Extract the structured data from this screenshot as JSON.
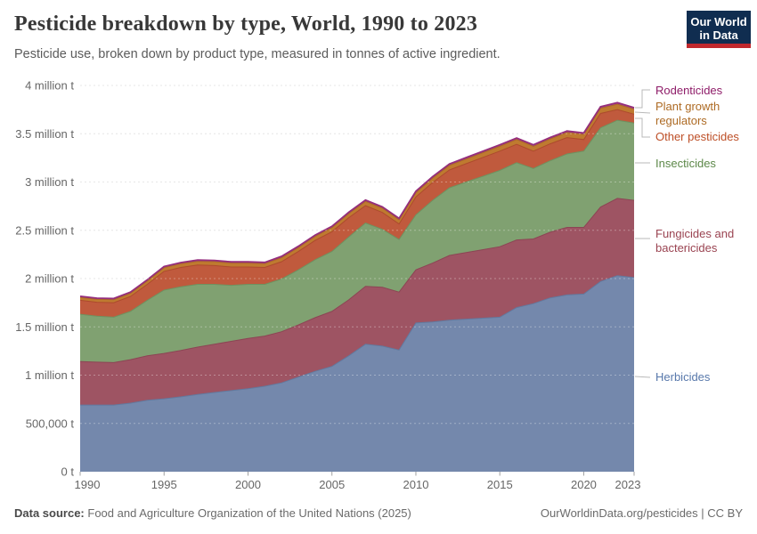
{
  "header": {
    "title": "Pesticide breakdown by type, World, 1990 to 2023",
    "subtitle": "Pesticide use, broken down by product type, measured in tonnes of active ingredient.",
    "logo": {
      "line1": "Our World",
      "line2": "in Data"
    }
  },
  "chart_data": {
    "type": "area",
    "stacked": true,
    "title": "Pesticide breakdown by type, World, 1990 to 2023",
    "unit": "tonnes of active ingredient",
    "grid": "dashed horizontal gridlines",
    "legend_position": "right",
    "x": [
      1990,
      1991,
      1992,
      1993,
      1994,
      1995,
      1996,
      1997,
      1998,
      1999,
      2000,
      2001,
      2002,
      2003,
      2004,
      2005,
      2006,
      2007,
      2008,
      2009,
      2010,
      2011,
      2012,
      2013,
      2014,
      2015,
      2016,
      2017,
      2018,
      2019,
      2020,
      2021,
      2022,
      2023
    ],
    "xlim": [
      1990,
      2023
    ],
    "ylim": [
      0,
      4000000
    ],
    "ytick_values": [
      0,
      500000,
      1000000,
      1500000,
      2000000,
      2500000,
      3000000,
      3500000,
      4000000
    ],
    "ytick_labels": [
      "0 t",
      "500,000 t",
      "1 million t",
      "1.5 million t",
      "2 million t",
      "2.5 million t",
      "3 million t",
      "3.5 million t",
      "4 million t"
    ],
    "xtick_labels": [
      1990,
      1995,
      2000,
      2005,
      2010,
      2015,
      2020,
      2023
    ],
    "series": [
      {
        "name": "Herbicides",
        "color": "#7488ac",
        "edge": "#62799e",
        "label_color": "#5878ab",
        "values": [
          690000,
          690000,
          690000,
          710000,
          740000,
          755000,
          775000,
          800000,
          820000,
          840000,
          860000,
          885000,
          920000,
          980000,
          1040000,
          1090000,
          1200000,
          1320000,
          1300000,
          1260000,
          1540000,
          1550000,
          1570000,
          1580000,
          1590000,
          1600000,
          1700000,
          1740000,
          1800000,
          1830000,
          1840000,
          1970000,
          2030000,
          2010000
        ]
      },
      {
        "name": "Fungicides and bactericides",
        "color": "#9e5463",
        "edge": "#8c4554",
        "label_color": "#9a4351",
        "values": [
          450000,
          445000,
          440000,
          450000,
          460000,
          470000,
          480000,
          490000,
          500000,
          510000,
          520000,
          520000,
          530000,
          540000,
          555000,
          570000,
          580000,
          600000,
          610000,
          600000,
          550000,
          610000,
          670000,
          690000,
          710000,
          730000,
          700000,
          670000,
          680000,
          700000,
          690000,
          770000,
          800000,
          800000
        ]
      },
      {
        "name": "Insecticides",
        "color": "#80a171",
        "edge": "#6e9260",
        "label_color": "#5d8849",
        "values": [
          490000,
          475000,
          470000,
          500000,
          575000,
          655000,
          660000,
          650000,
          620000,
          580000,
          560000,
          535000,
          545000,
          570000,
          600000,
          620000,
          650000,
          655000,
          600000,
          545000,
          570000,
          650000,
          700000,
          730000,
          760000,
          790000,
          800000,
          730000,
          740000,
          760000,
          790000,
          820000,
          810000,
          800000
        ]
      },
      {
        "name": "Other pesticides",
        "color": "#c05a3d",
        "edge": "#ad4a2d",
        "label_color": "#bd4e26",
        "values": [
          145000,
          145000,
          150000,
          155000,
          165000,
          195000,
          200000,
          200000,
          195000,
          190000,
          180000,
          175000,
          180000,
          190000,
          200000,
          205000,
          200000,
          180000,
          175000,
          160000,
          185000,
          185000,
          185000,
          190000,
          195000,
          200000,
          190000,
          180000,
          175000,
          170000,
          120000,
          150000,
          110000,
          92000
        ]
      },
      {
        "name": "Plant growth regulators",
        "color": "#bf7a30",
        "edge": "#ab6a26",
        "label_color": "#ad6a23",
        "values": [
          30000,
          30000,
          32000,
          33000,
          35000,
          37000,
          38000,
          39000,
          40000,
          40000,
          40000,
          40000,
          41000,
          41000,
          42000,
          42000,
          43000,
          44000,
          44000,
          44000,
          45000,
          46000,
          47000,
          48000,
          49000,
          50000,
          50000,
          50000,
          51000,
          52000,
          52000,
          53000,
          55000,
          52000
        ]
      },
      {
        "name": "Rodenticides",
        "color": "#a8428d",
        "edge": "#952e7c",
        "label_color": "#8e1c68",
        "values": [
          12000,
          12000,
          12000,
          12000,
          13000,
          13000,
          13000,
          13000,
          13000,
          13000,
          13000,
          13000,
          14000,
          14000,
          14000,
          14000,
          14000,
          14000,
          14000,
          14000,
          15000,
          15000,
          15000,
          15000,
          15000,
          15000,
          15000,
          15000,
          15000,
          16000,
          16000,
          17000,
          17000,
          16000
        ]
      }
    ]
  },
  "footer": {
    "source_label": "Data source:",
    "source": "Food and Agriculture Organization of the United Nations (2025)",
    "right": "OurWorldinData.org/pesticides | CC BY"
  }
}
